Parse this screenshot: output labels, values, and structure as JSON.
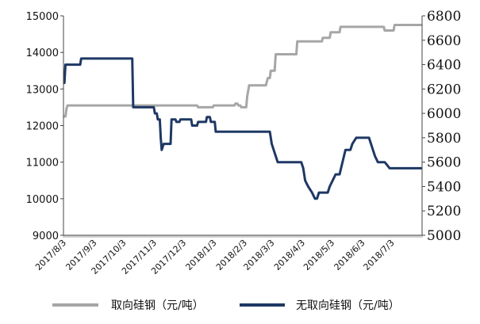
{
  "chart_data": {
    "type": "line",
    "title": "",
    "xlabel": "",
    "ylabel": "",
    "x_ticks": [
      "2017/8/3",
      "2017/9/3",
      "2017/10/3",
      "2017/11/3",
      "2017/12/3",
      "2018/1/3",
      "2018/2/3",
      "2018/3/3",
      "2018/4/3",
      "2018/5/3",
      "2018/6/3",
      "2018/7/3"
    ],
    "x_range": [
      "2017/8/3",
      "2018/8/3"
    ],
    "y_left": {
      "range": [
        9000,
        15000
      ],
      "ticks": [
        "15000",
        "14000",
        "13000",
        "12000",
        "11000",
        "10000",
        "9000"
      ]
    },
    "y_right": {
      "range": [
        5000,
        6800
      ],
      "ticks": [
        "6800",
        "6600",
        "6400",
        "6200",
        "6000",
        "5800",
        "5600",
        "5400",
        "5200",
        "5000"
      ]
    },
    "grid": false,
    "legend": "bottom",
    "series": [
      {
        "name": "取向硅钢（元/吨）",
        "axis": "left",
        "color": "#a6a6a6",
        "points": [
          [
            "2017/8/3",
            12250
          ],
          [
            "2017/8/5",
            12250
          ],
          [
            "2017/8/6",
            12450
          ],
          [
            "2017/8/7",
            12550
          ],
          [
            "2017/12/17",
            12550
          ],
          [
            "2017/12/18",
            12500
          ],
          [
            "2018/1/2",
            12500
          ],
          [
            "2018/1/3",
            12550
          ],
          [
            "2018/1/24",
            12550
          ],
          [
            "2018/1/25",
            12600
          ],
          [
            "2018/1/27",
            12600
          ],
          [
            "2018/1/28",
            12550
          ],
          [
            "2018/1/30",
            12550
          ],
          [
            "2018/1/31",
            12500
          ],
          [
            "2018/2/5",
            12500
          ],
          [
            "2018/2/6",
            12800
          ],
          [
            "2018/2/8",
            13100
          ],
          [
            "2018/2/25",
            13100
          ],
          [
            "2018/2/27",
            13300
          ],
          [
            "2018/3/1",
            13300
          ],
          [
            "2018/3/2",
            13500
          ],
          [
            "2018/3/6",
            13500
          ],
          [
            "2018/3/7",
            13950
          ],
          [
            "2018/3/28",
            13950
          ],
          [
            "2018/3/29",
            14300
          ],
          [
            "2018/4/23",
            14300
          ],
          [
            "2018/4/24",
            14400
          ],
          [
            "2018/5/1",
            14400
          ],
          [
            "2018/5/2",
            14550
          ],
          [
            "2018/5/11",
            14550
          ],
          [
            "2018/5/12",
            14700
          ],
          [
            "2018/6/25",
            14700
          ],
          [
            "2018/6/26",
            14600
          ],
          [
            "2018/7/5",
            14600
          ],
          [
            "2018/7/6",
            14750
          ],
          [
            "2018/8/3",
            14750
          ]
        ]
      },
      {
        "name": "无取向硅钢（元/吨）",
        "axis": "right",
        "color": "#1f3864",
        "points": [
          [
            "2017/8/3",
            6250
          ],
          [
            "2017/8/4",
            6250
          ],
          [
            "2017/8/5",
            6400
          ],
          [
            "2017/8/20",
            6400
          ],
          [
            "2017/8/21",
            6450
          ],
          [
            "2017/10/12",
            6450
          ],
          [
            "2017/10/13",
            6050
          ],
          [
            "2017/11/3",
            6050
          ],
          [
            "2017/11/4",
            6000
          ],
          [
            "2017/11/6",
            6000
          ],
          [
            "2017/11/7",
            5950
          ],
          [
            "2017/11/9",
            5950
          ],
          [
            "2017/11/10",
            5800
          ],
          [
            "2017/11/11",
            5700
          ],
          [
            "2017/11/13",
            5750
          ],
          [
            "2017/11/20",
            5750
          ],
          [
            "2017/11/21",
            5950
          ],
          [
            "2017/11/25",
            5950
          ],
          [
            "2017/11/26",
            5930
          ],
          [
            "2017/11/29",
            5930
          ],
          [
            "2017/11/30",
            5950
          ],
          [
            "2017/12/11",
            5950
          ],
          [
            "2017/12/12",
            5900
          ],
          [
            "2017/12/17",
            5900
          ],
          [
            "2017/12/18",
            5930
          ],
          [
            "2017/12/26",
            5930
          ],
          [
            "2017/12/27",
            5970
          ],
          [
            "2017/12/30",
            5970
          ],
          [
            "2017/12/31",
            5930
          ],
          [
            "2018/1/4",
            5930
          ],
          [
            "2018/1/5",
            5850
          ],
          [
            "2018/3/1",
            5850
          ],
          [
            "2018/3/3",
            5750
          ],
          [
            "2018/3/5",
            5700
          ],
          [
            "2018/3/7",
            5650
          ],
          [
            "2018/3/9",
            5600
          ],
          [
            "2018/4/2",
            5600
          ],
          [
            "2018/4/4",
            5550
          ],
          [
            "2018/4/6",
            5450
          ],
          [
            "2018/4/9",
            5400
          ],
          [
            "2018/4/13",
            5350
          ],
          [
            "2018/4/16",
            5300
          ],
          [
            "2018/4/18",
            5300
          ],
          [
            "2018/4/20",
            5350
          ],
          [
            "2018/4/29",
            5350
          ],
          [
            "2018/5/1",
            5400
          ],
          [
            "2018/5/4",
            5450
          ],
          [
            "2018/5/7",
            5500
          ],
          [
            "2018/5/11",
            5500
          ],
          [
            "2018/5/14",
            5600
          ],
          [
            "2018/5/17",
            5700
          ],
          [
            "2018/5/22",
            5700
          ],
          [
            "2018/5/24",
            5750
          ],
          [
            "2018/5/28",
            5800
          ],
          [
            "2018/6/10",
            5800
          ],
          [
            "2018/6/12",
            5750
          ],
          [
            "2018/6/14",
            5700
          ],
          [
            "2018/6/16",
            5650
          ],
          [
            "2018/6/19",
            5600
          ],
          [
            "2018/6/26",
            5600
          ],
          [
            "2018/6/28",
            5580
          ],
          [
            "2018/7/1",
            5550
          ],
          [
            "2018/8/3",
            5550
          ]
        ]
      }
    ]
  }
}
